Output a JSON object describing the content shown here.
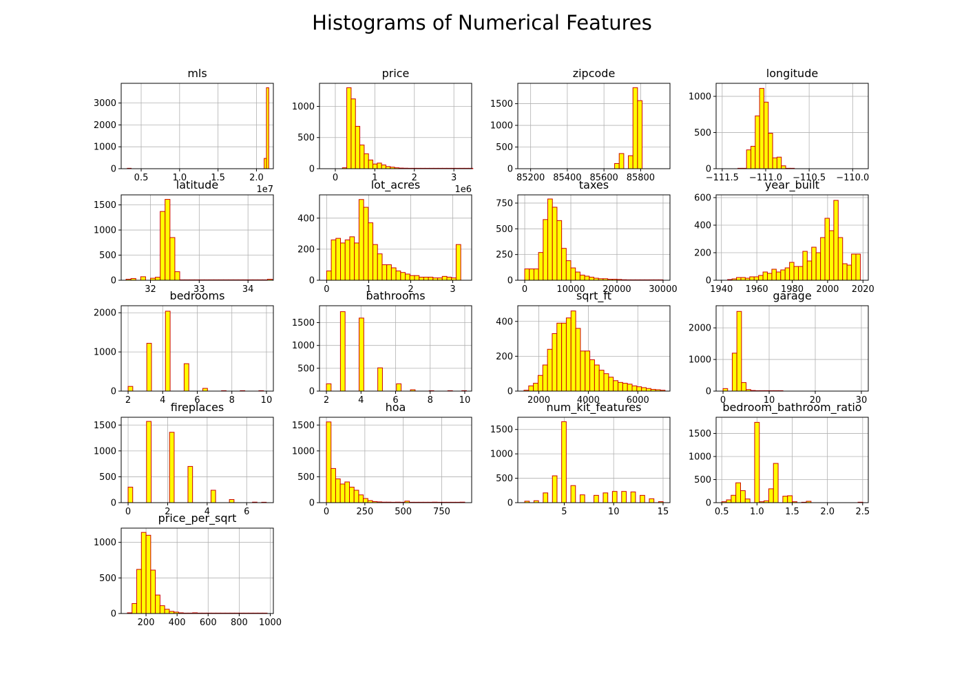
{
  "figure": {
    "title": "Histograms of Numerical Features",
    "bar_fill": "#FFFF00",
    "bar_edge": "#CC0000",
    "grid_color": "#B0B0B0"
  },
  "chart_data": [
    {
      "type": "bar",
      "title": "mls",
      "grid": true,
      "xlim": [
        2400000,
        22200000
      ],
      "ylim": [
        0,
        3900
      ],
      "xticks": [
        5000000,
        10000000,
        15000000,
        20000000
      ],
      "xticklabels": [
        "0.5",
        "1.0",
        "1.5",
        "2.0"
      ],
      "xoffset": "1e7",
      "yticks": [
        0,
        1000,
        2000,
        3000
      ],
      "yticklabels": [
        "0",
        "1000",
        "2000",
        "3000"
      ],
      "bins": {
        "start": 21000000,
        "width": 300000,
        "counts": [
          470,
          3700
        ]
      },
      "extra_bars": [
        {
          "x": 3200000,
          "width": 500000,
          "count": 15
        }
      ]
    },
    {
      "type": "bar",
      "title": "price",
      "grid": true,
      "xlim": [
        -400000,
        3450000
      ],
      "ylim": [
        0,
        1370
      ],
      "xticks": [
        0,
        1000000,
        2000000,
        3000000
      ],
      "xticklabels": [
        "0",
        "1",
        "2",
        "3"
      ],
      "xoffset": "1e6",
      "yticks": [
        0,
        500,
        1000
      ],
      "yticklabels": [
        "0",
        "500",
        "1000"
      ],
      "bins": {
        "start": 180000,
        "width": 110000,
        "counts": [
          15,
          1300,
          1120,
          680,
          380,
          240,
          140,
          75,
          90,
          60,
          35,
          25,
          15,
          10,
          8,
          6,
          5,
          4,
          3,
          2,
          2,
          2,
          1,
          1,
          1,
          1,
          1,
          1,
          1,
          1
        ]
      }
    },
    {
      "type": "bar",
      "title": "zipcode",
      "grid": true,
      "xlim": [
        85130,
        85960
      ],
      "ylim": [
        0,
        1970
      ],
      "xticks": [
        85200,
        85400,
        85600,
        85800
      ],
      "xticklabels": [
        "85200",
        "85400",
        "85600",
        "85800"
      ],
      "yticks": [
        0,
        500,
        1000,
        1500
      ],
      "yticklabels": [
        "0",
        "500",
        "1000",
        "1500"
      ],
      "bins": {
        "start": 85658,
        "width": 25,
        "counts": [
          120,
          350,
          0,
          300,
          1870,
          1570
        ]
      }
    },
    {
      "type": "bar",
      "title": "longitude",
      "grid": true,
      "xlim": [
        -111.57,
        -109.82
      ],
      "ylim": [
        0,
        1180
      ],
      "xticks": [
        -111.5,
        -111.0,
        -110.5,
        -110.0
      ],
      "xticklabels": [
        "−111.5",
        "−111.0",
        "−110.5",
        "−110.0"
      ],
      "yticks": [
        0,
        500,
        1000
      ],
      "yticklabels": [
        "0",
        "500",
        "1000"
      ],
      "bins": {
        "start": -111.32,
        "width": 0.05,
        "counts": [
          3,
          5,
          260,
          310,
          730,
          1110,
          920,
          490,
          150,
          160,
          40,
          5,
          2
        ]
      }
    },
    {
      "type": "bar",
      "title": "latitude",
      "grid": true,
      "xlim": [
        31.4,
        34.52
      ],
      "ylim": [
        0,
        1700
      ],
      "xticks": [
        32,
        33,
        34
      ],
      "xticklabels": [
        "32",
        "33",
        "34"
      ],
      "yticks": [
        0,
        500,
        1000,
        1500
      ],
      "yticklabels": [
        "0",
        "500",
        "1000",
        "1500"
      ],
      "bins": {
        "start": 31.5,
        "width": 0.1,
        "counts": [
          20,
          35,
          0,
          70,
          0,
          40,
          60,
          1370,
          1610,
          850,
          170,
          2,
          2,
          2,
          2,
          2,
          1,
          1,
          1,
          1,
          1,
          1,
          1,
          1,
          1,
          1,
          1,
          1,
          1,
          20
        ]
      }
    },
    {
      "type": "bar",
      "title": "lot_acres",
      "grid": true,
      "xlim": [
        -0.17,
        3.45
      ],
      "ylim": [
        0,
        550
      ],
      "xticks": [
        0,
        1,
        2,
        3
      ],
      "xticklabels": [
        "0",
        "1",
        "2",
        "3"
      ],
      "yticks": [
        0,
        200,
        400
      ],
      "yticklabels": [
        "0",
        "200",
        "400"
      ],
      "bins": {
        "start": 0,
        "width": 0.11,
        "counts": [
          60,
          260,
          270,
          240,
          260,
          280,
          240,
          520,
          470,
          370,
          230,
          170,
          100,
          100,
          80,
          60,
          50,
          40,
          30,
          30,
          20,
          20,
          20,
          15,
          15,
          25,
          20,
          15,
          230
        ]
      }
    },
    {
      "type": "bar",
      "title": "taxes",
      "grid": true,
      "xlim": [
        -1500,
        31500
      ],
      "ylim": [
        0,
        830
      ],
      "xticks": [
        0,
        10000,
        20000,
        30000
      ],
      "xticklabels": [
        "0",
        "10000",
        "20000",
        "30000"
      ],
      "yticks": [
        0,
        250,
        500,
        750
      ],
      "yticklabels": [
        "0",
        "250",
        "500",
        "750"
      ],
      "bins": {
        "start": 0,
        "width": 1000,
        "counts": [
          110,
          110,
          110,
          270,
          590,
          790,
          710,
          580,
          310,
          190,
          120,
          80,
          50,
          40,
          30,
          20,
          15,
          15,
          10,
          10,
          8,
          5,
          4,
          3,
          3,
          2,
          2,
          2,
          2,
          2
        ]
      }
    },
    {
      "type": "bar",
      "title": "year_built",
      "grid": true,
      "xlim": [
        1937,
        2023
      ],
      "ylim": [
        0,
        620
      ],
      "xticks": [
        1940,
        1960,
        1980,
        2000,
        2020
      ],
      "xticklabels": [
        "1940",
        "1960",
        "1980",
        "2000",
        "2020"
      ],
      "yticks": [
        0,
        200,
        400,
        600
      ],
      "yticklabels": [
        "0",
        "200",
        "400",
        "600"
      ],
      "bins": {
        "start": 1943.5,
        "width": 2.5,
        "counts": [
          5,
          10,
          20,
          20,
          15,
          25,
          25,
          35,
          60,
          50,
          80,
          60,
          75,
          90,
          130,
          100,
          100,
          210,
          140,
          240,
          200,
          310,
          450,
          360,
          580,
          310,
          120,
          110,
          190,
          190
        ]
      }
    },
    {
      "type": "bar",
      "title": "bedrooms",
      "grid": true,
      "xlim": [
        1.6,
        10.4
      ],
      "ylim": [
        0,
        2180
      ],
      "xticks": [
        2,
        4,
        6,
        8,
        10
      ],
      "xticklabels": [
        "2",
        "4",
        "6",
        "8",
        "10"
      ],
      "yticks": [
        0,
        1000,
        2000
      ],
      "yticklabels": [
        "0",
        "1000",
        "2000"
      ],
      "bins": {
        "start": 2,
        "width": 0.27,
        "counts": [
          120,
          0,
          0,
          0,
          1220,
          0,
          0,
          0,
          2040,
          0,
          0,
          0,
          700,
          0,
          0,
          0,
          70,
          0,
          0,
          0,
          10,
          0,
          0,
          0,
          5,
          0,
          0,
          0,
          4,
          0
        ]
      }
    },
    {
      "type": "bar",
      "title": "bathrooms",
      "grid": true,
      "xlim": [
        1.6,
        10.4
      ],
      "ylim": [
        0,
        1870
      ],
      "xticks": [
        2,
        4,
        6,
        8,
        10
      ],
      "xticklabels": [
        "2",
        "4",
        "6",
        "8",
        "10"
      ],
      "yticks": [
        0,
        500,
        1000,
        1500
      ],
      "yticklabels": [
        "0",
        "500",
        "1000",
        "1500"
      ],
      "bins": {
        "start": 2,
        "width": 0.27,
        "counts": [
          160,
          0,
          0,
          1740,
          0,
          0,
          0,
          1600,
          0,
          0,
          0,
          510,
          0,
          0,
          0,
          160,
          0,
          0,
          30,
          0,
          0,
          0,
          3,
          0,
          0,
          0,
          2,
          0,
          0,
          1
        ]
      }
    },
    {
      "type": "bar",
      "title": "sqrt_ft",
      "grid": true,
      "xlim": [
        1150,
        7300
      ],
      "ylim": [
        0,
        490
      ],
      "xticks": [
        2000,
        4000,
        6000
      ],
      "xticklabels": [
        "2000",
        "4000",
        "6000"
      ],
      "yticks": [
        0,
        200,
        400
      ],
      "yticklabels": [
        "0",
        "200",
        "400"
      ],
      "bins": {
        "start": 1400,
        "width": 190,
        "counts": [
          5,
          30,
          45,
          90,
          150,
          240,
          330,
          390,
          390,
          420,
          460,
          360,
          230,
          230,
          180,
          150,
          120,
          100,
          80,
          60,
          50,
          45,
          40,
          30,
          25,
          20,
          15,
          10,
          8,
          5
        ]
      }
    },
    {
      "type": "bar",
      "title": "garage",
      "grid": true,
      "xlim": [
        -1.5,
        31.5
      ],
      "ylim": [
        0,
        2700
      ],
      "xticks": [
        0,
        10,
        20,
        30
      ],
      "xticklabels": [
        "0",
        "10",
        "20",
        "30"
      ],
      "yticks": [
        0,
        1000,
        2000
      ],
      "yticklabels": [
        "0",
        "1000",
        "2000"
      ],
      "bins": {
        "start": 0,
        "width": 1,
        "counts": [
          80,
          0,
          1200,
          2520,
          270,
          50,
          20,
          10,
          5,
          3,
          2,
          1,
          1
        ]
      }
    },
    {
      "type": "bar",
      "title": "fireplaces",
      "grid": true,
      "xlim": [
        -0.35,
        7.35
      ],
      "ylim": [
        0,
        1650
      ],
      "xticks": [
        0,
        2,
        4,
        6
      ],
      "xticklabels": [
        "0",
        "2",
        "4",
        "6"
      ],
      "yticks": [
        0,
        500,
        1000,
        1500
      ],
      "yticklabels": [
        "0",
        "500",
        "1000",
        "1500"
      ],
      "bins": {
        "start": 0,
        "width": 0.233,
        "counts": [
          300,
          0,
          0,
          0,
          1570,
          0,
          0,
          0,
          0,
          1360,
          0,
          0,
          0,
          700,
          0,
          0,
          0,
          0,
          240,
          0,
          0,
          0,
          60,
          0,
          0,
          0,
          0,
          10,
          0,
          5
        ]
      }
    },
    {
      "type": "bar",
      "title": "hoa",
      "grid": true,
      "xlim": [
        -45,
        945
      ],
      "ylim": [
        0,
        1650
      ],
      "xticks": [
        0,
        250,
        500,
        750
      ],
      "xticklabels": [
        "0",
        "250",
        "500",
        "750"
      ],
      "yticks": [
        0,
        500,
        1000,
        1500
      ],
      "yticklabels": [
        "0",
        "500",
        "1000",
        "1500"
      ],
      "bins": {
        "start": 0,
        "width": 30,
        "counts": [
          1560,
          660,
          460,
          360,
          400,
          300,
          240,
          150,
          80,
          40,
          20,
          15,
          10,
          10,
          5,
          10,
          5,
          30,
          5,
          5,
          5,
          5,
          5,
          10,
          5,
          5,
          5,
          5,
          5,
          10
        ]
      }
    },
    {
      "type": "bar",
      "title": "num_kit_features",
      "grid": true,
      "xlim": [
        0.3,
        15.7
      ],
      "ylim": [
        0,
        1750
      ],
      "xticks": [
        5,
        10,
        15
      ],
      "xticklabels": [
        "5",
        "10",
        "15"
      ],
      "yticks": [
        0,
        500,
        1000,
        1500
      ],
      "yticklabels": [
        "0",
        "500",
        "1000",
        "1500"
      ],
      "bins": {
        "start": 1,
        "width": 0.467,
        "counts": [
          30,
          0,
          40,
          0,
          200,
          0,
          550,
          0,
          1660,
          0,
          350,
          0,
          160,
          0,
          0,
          150,
          0,
          200,
          0,
          230,
          0,
          230,
          0,
          220,
          0,
          150,
          0,
          80,
          0,
          20
        ]
      }
    },
    {
      "type": "bar",
      "title": "bedroom_bathroom_ratio",
      "grid": true,
      "xlim": [
        0.42,
        2.58
      ],
      "ylim": [
        0,
        1850
      ],
      "xticks": [
        0.5,
        1.0,
        1.5,
        2.0,
        2.5
      ],
      "xticklabels": [
        "0.5",
        "1.0",
        "1.5",
        "2.0",
        "2.5"
      ],
      "yticks": [
        0,
        500,
        1000,
        1500
      ],
      "yticklabels": [
        "0",
        "500",
        "1000",
        "1500"
      ],
      "bins": {
        "start": 0.5,
        "width": 0.0667,
        "counts": [
          20,
          60,
          160,
          430,
          260,
          80,
          0,
          1740,
          20,
          40,
          300,
          850,
          0,
          140,
          150,
          20,
          0,
          5,
          30,
          0,
          0,
          0,
          0,
          0,
          0,
          0,
          0,
          0,
          0,
          10
        ]
      }
    },
    {
      "type": "bar",
      "title": "price_per_sqrt",
      "grid": true,
      "xlim": [
        40,
        1020
      ],
      "ylim": [
        0,
        1200
      ],
      "xticks": [
        200,
        400,
        600,
        800,
        1000
      ],
      "xticklabels": [
        "200",
        "400",
        "600",
        "800",
        "1000"
      ],
      "yticks": [
        0,
        500,
        1000
      ],
      "yticklabels": [
        "0",
        "500",
        "1000"
      ],
      "bins": {
        "start": 80,
        "width": 30,
        "counts": [
          10,
          140,
          620,
          1140,
          1100,
          610,
          260,
          110,
          60,
          30,
          20,
          10,
          5,
          5,
          10,
          5,
          3,
          2,
          2,
          2,
          1,
          1,
          1,
          1,
          1,
          1,
          1,
          1,
          1,
          1
        ]
      }
    }
  ]
}
